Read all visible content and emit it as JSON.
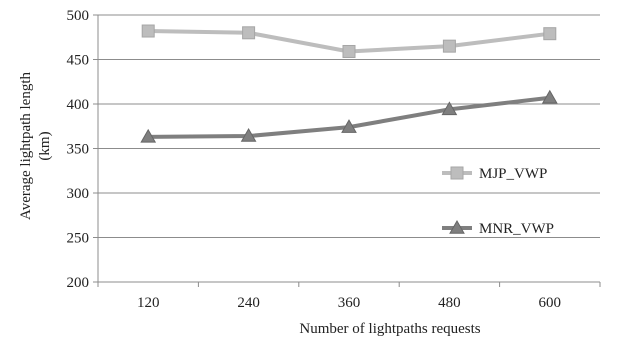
{
  "chart_data": {
    "type": "line",
    "title": "",
    "xlabel": "Number of lightpaths requests",
    "ylabel": "Average lightpath length (km)",
    "ylabel_lines": [
      "Average lightpath length",
      "(km)"
    ],
    "categories": [
      "120",
      "240",
      "360",
      "480",
      "600"
    ],
    "ylim": [
      200,
      500
    ],
    "yticks": [
      200,
      250,
      300,
      350,
      400,
      450,
      500
    ],
    "grid": "horizontal",
    "legend_position": "right",
    "series": [
      {
        "name": "MJP_VWP",
        "marker": "square",
        "color": "#bdbdbd",
        "values": [
          482,
          480,
          459,
          465,
          479
        ]
      },
      {
        "name": "MNR_VWP",
        "marker": "triangle",
        "color": "#7f7f7f",
        "values": [
          363,
          364,
          374,
          394,
          407
        ]
      }
    ]
  }
}
